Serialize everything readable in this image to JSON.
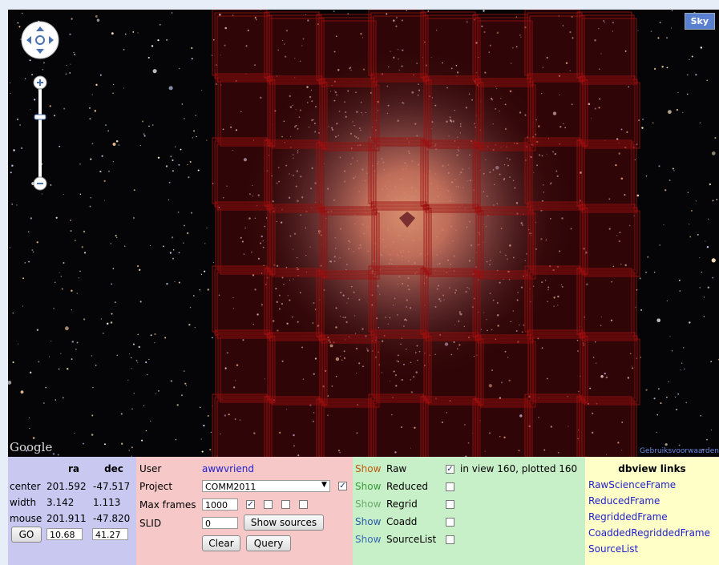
{
  "map": {
    "button": "Sky",
    "logo": "Google",
    "terms": "Gebruiksvoorwaarden"
  },
  "coords": {
    "headers": [
      "ra",
      "dec"
    ],
    "rows": [
      {
        "label": "center",
        "ra": "201.592",
        "dec": "-47.517"
      },
      {
        "label": "width",
        "ra": "3.142",
        "dec": "1.113"
      },
      {
        "label": "mouse",
        "ra": "201.911",
        "dec": "-47.820"
      }
    ],
    "button": "GO",
    "inputs": [
      "10.68",
      "41.27"
    ]
  },
  "query": {
    "user_label": "User",
    "user": "awwvriend",
    "project_label": "Project",
    "project": "COMM2011",
    "project_checked": true,
    "max_frames_label": "Max frames",
    "max_frames": "1000",
    "max_frames_checks": [
      true,
      false,
      false,
      false
    ],
    "slid_label": "SLID",
    "slid": "0",
    "show_sources": "Show sources",
    "clear": "Clear",
    "query": "Query"
  },
  "layers": {
    "rows": [
      {
        "show": "Show",
        "label": "Raw",
        "checked": true,
        "show_color": "#c05a10"
      },
      {
        "show": "Show",
        "label": "Reduced",
        "checked": false,
        "show_color": "#3a9a3a"
      },
      {
        "show": "Show",
        "label": "Regrid",
        "checked": false,
        "show_color": "#6aaa6a"
      },
      {
        "show": "Show",
        "label": "Coadd",
        "checked": false,
        "show_color": "#2a5aaa"
      },
      {
        "show": "Show",
        "label": "SourceList",
        "checked": false,
        "show_color": "#3a6ab0"
      }
    ],
    "status": "in view 160, plotted 160"
  },
  "links": {
    "title": "dbview links",
    "items": [
      "RawScienceFrame",
      "ReducedFrame",
      "RegriddedFrame",
      "CoaddedRegriddedFrame",
      "SourceList"
    ]
  }
}
